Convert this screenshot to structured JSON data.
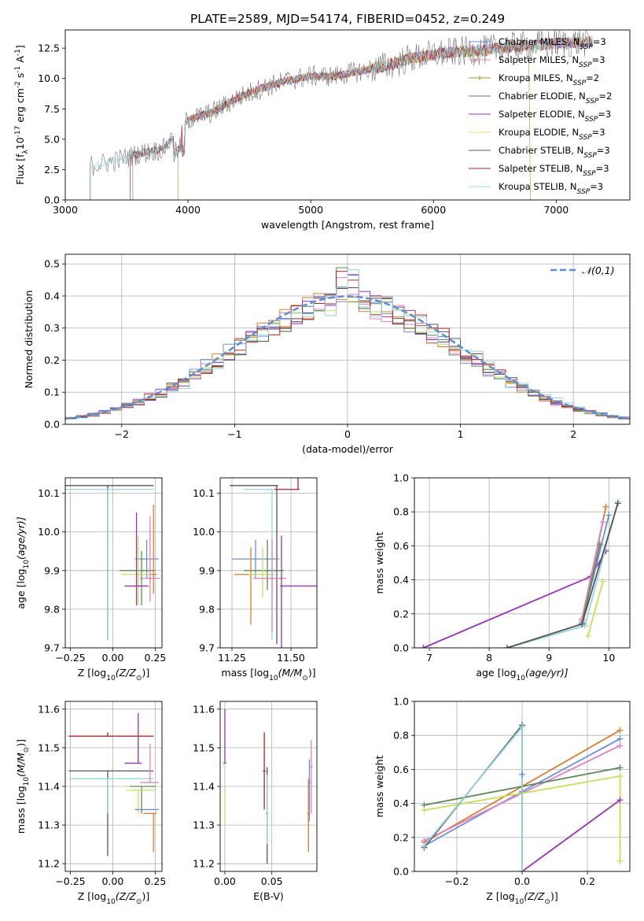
{
  "title": "PLATE=2589, MJD=54174, FIBERID=0452, z=0.249",
  "colors": {
    "Chabrier MILES": "#6a8fe0",
    "Salpeter MILES": "#e27fc4",
    "Kroupa MILES": "#b58a2a",
    "Chabrier ELODIE": "#5a8a5a",
    "Salpeter ELODIE": "#9b30c0",
    "Kroupa ELODIE": "#e4e060",
    "Chabrier STELIB": "#555555",
    "Salpeter STELIB": "#c02020",
    "Kroupa STELIB": "#90d8e0",
    "orange": "#e07b2a",
    "lime": "#c8e050",
    "teal": "#5a9a9a"
  },
  "chart_data": [
    {
      "id": "spectrum",
      "type": "line",
      "xlabel": "wavelength [Angstrom, rest frame]",
      "ylabel": "Flux [f",
      "ylabel_sub": "λ",
      "ylabel_rest": "10",
      "ylabel_sup1": "-17",
      "ylabel_mid": " erg cm",
      "ylabel_sup2": "-2",
      "ylabel_mid2": " s",
      "ylabel_sup3": "-1",
      "ylabel_mid3": " A",
      "ylabel_sup4": "-1",
      "ylabel_end": "]",
      "xlim": [
        3000,
        7600
      ],
      "ylim": [
        0,
        14
      ],
      "xticks": [
        3000,
        4000,
        5000,
        6000,
        7000
      ],
      "yticks": [
        0.0,
        2.5,
        5.0,
        7.5,
        10.0,
        12.5
      ],
      "ytick_labels": [
        "0.0",
        "2.5",
        "5.0",
        "7.5",
        "10.0",
        "12.5"
      ],
      "continuum": [
        [
          3200,
          2.8
        ],
        [
          3400,
          3.2
        ],
        [
          3600,
          3.8
        ],
        [
          3800,
          4.2
        ],
        [
          4000,
          6.6
        ],
        [
          4200,
          7.2
        ],
        [
          4400,
          8.4
        ],
        [
          4600,
          9.2
        ],
        [
          4800,
          9.8
        ],
        [
          5000,
          10.2
        ],
        [
          5200,
          10.2
        ],
        [
          5400,
          10.6
        ],
        [
          5600,
          11.0
        ],
        [
          5800,
          11.6
        ],
        [
          6000,
          12.0
        ],
        [
          6200,
          12.2
        ],
        [
          6400,
          12.3
        ],
        [
          6600,
          12.6
        ],
        [
          6800,
          12.7
        ],
        [
          7000,
          12.9
        ],
        [
          7200,
          13.0
        ]
      ],
      "legend": [
        {
          "name": "Chabrier MILES",
          "n": "3"
        },
        {
          "name": "Salpeter MILES",
          "n": "3"
        },
        {
          "name": "Kroupa MILES",
          "n": "2"
        },
        {
          "name": "Chabrier ELODIE",
          "n": "2"
        },
        {
          "name": "Salpeter ELODIE",
          "n": "3"
        },
        {
          "name": "Kroupa ELODIE",
          "n": "3"
        },
        {
          "name": "Chabrier STELIB",
          "n": "3"
        },
        {
          "name": "Salpeter STELIB",
          "n": "3"
        },
        {
          "name": "Kroupa STELIB",
          "n": "3"
        }
      ],
      "legend_n_prefix": "N",
      "legend_n_sub": "SSP"
    },
    {
      "id": "residuals",
      "type": "histogram",
      "xlabel": "(data-model)/error",
      "ylabel": "Normed distribution",
      "xlim": [
        -2.5,
        2.5
      ],
      "ylim": [
        0,
        0.53
      ],
      "xticks": [
        -2,
        -1,
        0,
        1,
        2
      ],
      "xtick_labels": [
        "−2",
        "−1",
        "0",
        "1",
        "2"
      ],
      "yticks": [
        0.0,
        0.1,
        0.2,
        0.3,
        0.4,
        0.5
      ],
      "ytick_labels": [
        "0.0",
        "0.1",
        "0.2",
        "0.3",
        "0.4",
        "0.5"
      ],
      "bin_width": 0.1,
      "legend_label": "𝒩(0,1)"
    },
    {
      "id": "age-vs-Z",
      "type": "errorbar",
      "xlabel": "Z [log",
      "xlabel_sub": "10",
      "xlabel_rest": "(Z/Z",
      "xlabel_sub2": "⊙",
      "xlabel_end": ")]",
      "ylabel": "age  [log",
      "ylabel_sub": "10",
      "ylabel_rest": "(age/yr)]",
      "xlim": [
        -0.28,
        0.29
      ],
      "ylim": [
        9.7,
        10.14
      ],
      "xticks": [
        -0.25,
        0.0,
        0.25
      ],
      "xtick_labels": [
        "−0.25",
        "0.00",
        "0.25"
      ],
      "yticks": [
        9.7,
        9.8,
        9.9,
        10.0,
        10.1
      ],
      "ytick_labels": [
        "9.7",
        "9.8",
        "9.9",
        "10.0",
        "10.1"
      ],
      "points": [
        {
          "color": "#555555",
          "x": -0.03,
          "xe": [
            0.27,
            0.27
          ],
          "y": 10.12,
          "ye": [
            0.4,
            0.0
          ]
        },
        {
          "color": "#90d8e0",
          "x": -0.03,
          "xe": [
            0.27,
            0.27
          ],
          "y": 10.11,
          "ye": [
            0.39,
            0.0
          ]
        },
        {
          "color": "#6a8fe0",
          "x": 0.2,
          "xe": [
            0.07,
            0.07
          ],
          "y": 9.93,
          "ye": [
            0.05,
            0.05
          ]
        },
        {
          "color": "#5a8a5a",
          "x": 0.17,
          "xe": [
            0.13,
            0.08
          ],
          "y": 9.9,
          "ye": [
            0.09,
            0.05
          ]
        },
        {
          "color": "#e07b2a",
          "x": 0.24,
          "xe": [
            0.02,
            0.02
          ],
          "y": 9.89,
          "ye": [
            0.05,
            0.18
          ]
        },
        {
          "color": "#c8e050",
          "x": 0.15,
          "xe": [
            0.1,
            0.08
          ],
          "y": 9.89,
          "ye": [
            0.08,
            0.1
          ]
        },
        {
          "color": "#e27fc4",
          "x": 0.22,
          "xe": [
            0.06,
            0.06
          ],
          "y": 9.88,
          "ye": [
            0.06,
            0.16
          ]
        },
        {
          "color": "#9b30c0",
          "x": 0.14,
          "xe": [
            0.07,
            0.07
          ],
          "y": 9.86,
          "ye": [
            0.05,
            0.19
          ]
        }
      ]
    },
    {
      "id": "age-vs-mass",
      "type": "errorbar",
      "xlabel": "mass [log",
      "xlabel_sub": "10",
      "xlabel_rest": "(M/M",
      "xlabel_sub2": "⊙",
      "xlabel_end": ")]",
      "xlim": [
        11.2,
        11.61
      ],
      "ylim": [
        9.7,
        10.14
      ],
      "xticks": [
        11.25,
        11.5
      ],
      "xtick_labels": [
        "11.25",
        "11.50"
      ],
      "yticks": [
        9.7,
        9.8,
        9.9,
        10.0,
        10.1
      ],
      "ytick_labels": [
        "9.7",
        "9.8",
        "9.9",
        "10.0",
        "10.1"
      ],
      "points": [
        {
          "color": "#555555",
          "x": 11.44,
          "xe": [
            0.2,
            0.0
          ],
          "y": 10.12,
          "ye": [
            0.41,
            0.0
          ]
        },
        {
          "color": "#90d8e0",
          "x": 11.42,
          "xe": [
            0.12,
            0.0
          ],
          "y": 10.11,
          "ye": [
            0.39,
            0.0
          ]
        },
        {
          "color": "#c02020",
          "x": 11.53,
          "xe": [
            0.1,
            0.0
          ],
          "y": 10.11,
          "ye": [
            0.0,
            0.34
          ]
        },
        {
          "color": "#6a8fe0",
          "x": 11.35,
          "xe": [
            0.1,
            0.1
          ],
          "y": 9.93,
          "ye": [
            0.05,
            0.05
          ]
        },
        {
          "color": "#5a8a5a",
          "x": 11.4,
          "xe": [
            0.1,
            0.07
          ],
          "y": 9.9,
          "ye": [
            0.05,
            0.08
          ]
        },
        {
          "color": "#e07b2a",
          "x": 11.33,
          "xe": [
            0.07,
            0.0
          ],
          "y": 9.89,
          "ye": [
            0.13,
            0.07
          ]
        },
        {
          "color": "#c8e050",
          "x": 11.38,
          "xe": [
            0.06,
            0.05
          ],
          "y": 9.89,
          "ye": [
            0.06,
            0.07
          ]
        },
        {
          "color": "#e27fc4",
          "x": 11.42,
          "xe": [
            0.08,
            0.06
          ],
          "y": 9.88,
          "ye": [
            0.14,
            0.1
          ]
        },
        {
          "color": "#9b30c0",
          "x": 11.46,
          "xe": [
            0.0,
            0.15
          ],
          "y": 9.86,
          "ye": [
            0.16,
            0.13
          ]
        }
      ]
    },
    {
      "id": "weight-vs-age",
      "type": "line",
      "xlabel": "age  [log",
      "xlabel_sub": "10",
      "xlabel_rest": "(age/yr)]",
      "ylabel": "mass weight",
      "xlim": [
        6.75,
        10.35
      ],
      "ylim": [
        0,
        1.0
      ],
      "xticks": [
        7,
        8,
        9,
        10
      ],
      "yticks": [
        0.0,
        0.2,
        0.4,
        0.6,
        0.8,
        1.0
      ],
      "ytick_labels": [
        "0.0",
        "0.2",
        "0.4",
        "0.6",
        "0.8",
        "1.0"
      ],
      "series": [
        {
          "color": "#9b30c0",
          "x": [
            6.9,
            9.7,
            9.95
          ],
          "y": [
            0.0,
            0.42,
            0.57
          ]
        },
        {
          "color": "#e07b2a",
          "x": [
            9.55,
            9.95
          ],
          "y": [
            0.17,
            0.83
          ]
        },
        {
          "color": "#6a8fe0",
          "x": [
            9.55,
            10.0
          ],
          "y": [
            0.15,
            0.78
          ]
        },
        {
          "color": "#e27fc4",
          "x": [
            9.55,
            9.9
          ],
          "y": [
            0.16,
            0.74
          ]
        },
        {
          "color": "#c8e050",
          "x": [
            9.65,
            9.9
          ],
          "y": [
            0.07,
            0.39
          ]
        },
        {
          "color": "#5a8a5a",
          "x": [
            9.55,
            9.85
          ],
          "y": [
            0.14,
            0.61
          ]
        },
        {
          "color": "#90d8e0",
          "x": [
            8.3,
            9.6,
            10.15
          ],
          "y": [
            0.0,
            0.13,
            0.86
          ]
        },
        {
          "color": "#555555",
          "x": [
            8.3,
            9.55,
            10.15
          ],
          "y": [
            0.0,
            0.14,
            0.85
          ]
        }
      ]
    },
    {
      "id": "mass-vs-Z",
      "type": "errorbar",
      "xlabel": "Z [log",
      "xlabel_sub": "10",
      "xlabel_rest": "(Z/Z",
      "xlabel_sub2": "⊙",
      "xlabel_end": ")]",
      "ylabel": "mass [log",
      "ylabel_sub": "10",
      "ylabel_rest": "(M/M",
      "ylabel_sub2": "⊙",
      "ylabel_end": ")]",
      "xlim": [
        -0.28,
        0.29
      ],
      "ylim": [
        11.18,
        11.62
      ],
      "xticks": [
        -0.25,
        0.0,
        0.25
      ],
      "xtick_labels": [
        "−0.25",
        "0.00",
        "0.25"
      ],
      "yticks": [
        11.2,
        11.3,
        11.4,
        11.5,
        11.6
      ],
      "ytick_labels": [
        "11.2",
        "11.3",
        "11.4",
        "11.5",
        "11.6"
      ],
      "points": [
        {
          "color": "#c02020",
          "x": -0.03,
          "xe": [
            0.23,
            0.27
          ],
          "y": 11.53,
          "ye": [
            0.0,
            0.01
          ]
        },
        {
          "color": "#9b30c0",
          "x": 0.15,
          "xe": [
            0.08,
            0.02
          ],
          "y": 11.46,
          "ye": [
            0.0,
            0.13
          ]
        },
        {
          "color": "#555555",
          "x": -0.03,
          "xe": [
            0.23,
            0.27
          ],
          "y": 11.44,
          "ye": [
            0.22,
            0.0
          ]
        },
        {
          "color": "#90d8e0",
          "x": -0.03,
          "xe": [
            0.23,
            0.27
          ],
          "y": 11.42,
          "ye": [
            0.09,
            0.0
          ]
        },
        {
          "color": "#e27fc4",
          "x": 0.22,
          "xe": [
            0.06,
            0.05
          ],
          "y": 11.41,
          "ye": [
            0.0,
            0.1
          ]
        },
        {
          "color": "#5a8a5a",
          "x": 0.17,
          "xe": [
            0.07,
            0.08
          ],
          "y": 11.4,
          "ye": [
            0.07,
            0.0
          ]
        },
        {
          "color": "#c8e050",
          "x": 0.15,
          "xe": [
            0.07,
            0.1
          ],
          "y": 11.39,
          "ye": [
            0.06,
            0.0
          ]
        },
        {
          "color": "#6a8fe0",
          "x": 0.2,
          "xe": [
            0.07,
            0.07
          ],
          "y": 11.34,
          "ye": [
            0.0,
            0.0
          ]
        },
        {
          "color": "#e07b2a",
          "x": 0.24,
          "xe": [
            0.06,
            0.02
          ],
          "y": 11.33,
          "ye": [
            0.1,
            0.0
          ]
        }
      ]
    },
    {
      "id": "mass-vs-ebv",
      "type": "errorbar",
      "xlabel": "E(B-V)",
      "xlim": [
        -0.005,
        0.098
      ],
      "ylim": [
        11.18,
        11.62
      ],
      "xticks": [
        0.0,
        0.05
      ],
      "xtick_labels": [
        "0.00",
        "0.05"
      ],
      "yticks": [
        11.2,
        11.3,
        11.4,
        11.5,
        11.6
      ],
      "ytick_labels": [
        "11.2",
        "11.3",
        "11.4",
        "11.5",
        "11.6"
      ],
      "points": [
        {
          "color": "#9b30c0",
          "x": 0.0,
          "y": 11.46,
          "ye": [
            0.0,
            0.14
          ]
        },
        {
          "color": "#c8e050",
          "x": 0.0,
          "y": 11.39,
          "ye": [
            0.09,
            0.0
          ]
        },
        {
          "color": "#c02020",
          "x": 0.042,
          "y": 11.44,
          "ye": [
            0.1,
            0.1
          ]
        },
        {
          "color": "#555555",
          "x": 0.045,
          "y": 11.33,
          "ye": [
            0.13,
            0.12
          ]
        },
        {
          "color": "#90d8e0",
          "x": 0.045,
          "y": 11.33,
          "ye": [
            0.08,
            0.1
          ]
        },
        {
          "color": "#6a8fe0",
          "x": 0.09,
          "y": 11.41,
          "ye": [
            0.1,
            0.06
          ]
        },
        {
          "color": "#e27fc4",
          "x": 0.092,
          "y": 11.45,
          "ye": [
            0.12,
            0.07
          ]
        },
        {
          "color": "#e07b2a",
          "x": 0.089,
          "y": 11.33,
          "ye": [
            0.1,
            0.09
          ]
        }
      ]
    },
    {
      "id": "weight-vs-Z",
      "type": "line",
      "xlabel": "Z [log",
      "xlabel_sub": "10",
      "xlabel_rest": "(Z/Z",
      "xlabel_sub2": "⊙",
      "xlabel_end": ")]",
      "ylabel": "mass weight",
      "xlim": [
        -0.33,
        0.33
      ],
      "ylim": [
        0,
        1.0
      ],
      "xticks": [
        -0.2,
        0.0,
        0.2
      ],
      "xtick_labels": [
        "−0.2",
        "0.0",
        "0.2"
      ],
      "yticks": [
        0.0,
        0.2,
        0.4,
        0.6,
        0.8,
        1.0
      ],
      "ytick_labels": [
        "0.0",
        "0.2",
        "0.4",
        "0.6",
        "0.8",
        "1.0"
      ],
      "series": [
        {
          "color": "#e07b2a",
          "x": [
            -0.3,
            0.0,
            0.3
          ],
          "y": [
            0.17,
            0.5,
            0.83
          ]
        },
        {
          "color": "#6a8fe0",
          "x": [
            -0.3,
            0.0,
            0.3
          ],
          "y": [
            0.15,
            0.47,
            0.78
          ]
        },
        {
          "color": "#e27fc4",
          "x": [
            -0.3,
            0.0,
            0.3
          ],
          "y": [
            0.18,
            0.46,
            0.74
          ]
        },
        {
          "color": "#5a8a5a",
          "x": [
            -0.3,
            0.3
          ],
          "y": [
            0.39,
            0.61
          ]
        },
        {
          "color": "#c8e050",
          "x": [
            -0.3,
            0.3,
            0.3
          ],
          "y": [
            0.36,
            0.56,
            0.06
          ]
        },
        {
          "color": "#9b30c0",
          "x": [
            0.0,
            0.3
          ],
          "y": [
            0.0,
            0.42
          ]
        },
        {
          "color": "#555555",
          "x": [
            -0.3,
            0.0,
            0.0
          ],
          "y": [
            0.14,
            0.86,
            0.0
          ]
        },
        {
          "color": "#90d8e0",
          "x": [
            -0.3,
            0.0,
            0.0
          ],
          "y": [
            0.15,
            0.85,
            0.0
          ]
        },
        {
          "color": "#6a8fe0",
          "x": [
            0.0,
            0.0
          ],
          "y": [
            0.57,
            0.57
          ]
        }
      ]
    }
  ]
}
